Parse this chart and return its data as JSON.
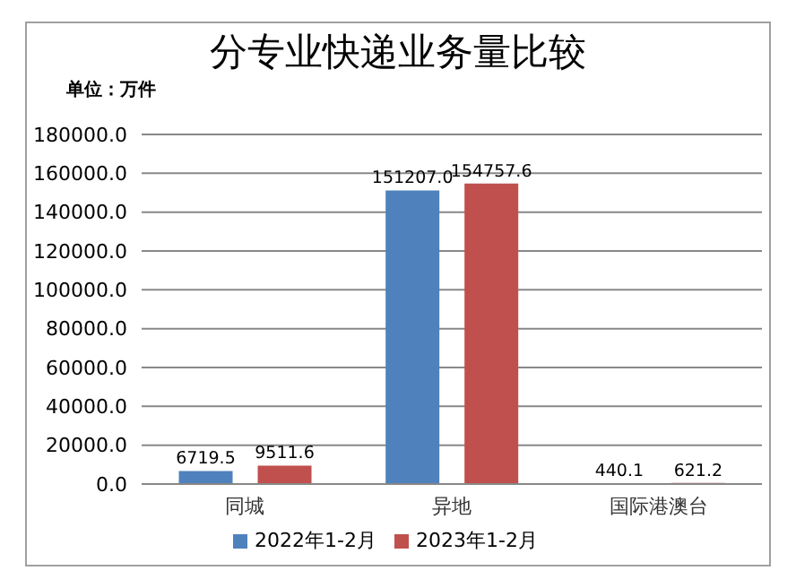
{
  "chart_data": {
    "type": "bar",
    "title": "分专业快递业务量比较",
    "ylabel": "单位：万件",
    "categories": [
      "同城",
      "异地",
      "国际港澳台"
    ],
    "series": [
      {
        "name": "2022年1-2月",
        "color": "#4f81bd",
        "values": [
          6719.5,
          151207.0,
          440.1
        ],
        "value_labels": [
          "6719.5",
          "151207.0",
          "440.1"
        ]
      },
      {
        "name": "2023年1-2月",
        "color": "#c0504d",
        "values": [
          9511.6,
          154757.6,
          621.2
        ],
        "value_labels": [
          "9511.6",
          "154757.6",
          "621.2"
        ]
      }
    ],
    "ylim": [
      0,
      180000
    ],
    "yticks": [
      {
        "value": 0,
        "label": "0.0"
      },
      {
        "value": 20000,
        "label": "20000.0"
      },
      {
        "value": 40000,
        "label": "40000.0"
      },
      {
        "value": 60000,
        "label": "60000.0"
      },
      {
        "value": 80000,
        "label": "80000.0"
      },
      {
        "value": 100000,
        "label": "100000.0"
      },
      {
        "value": 120000,
        "label": "120000.0"
      },
      {
        "value": 140000,
        "label": "140000.0"
      },
      {
        "value": 160000,
        "label": "160000.0"
      },
      {
        "value": 180000,
        "label": "180000.0"
      }
    ],
    "grid": "y",
    "legend": "bottom"
  }
}
